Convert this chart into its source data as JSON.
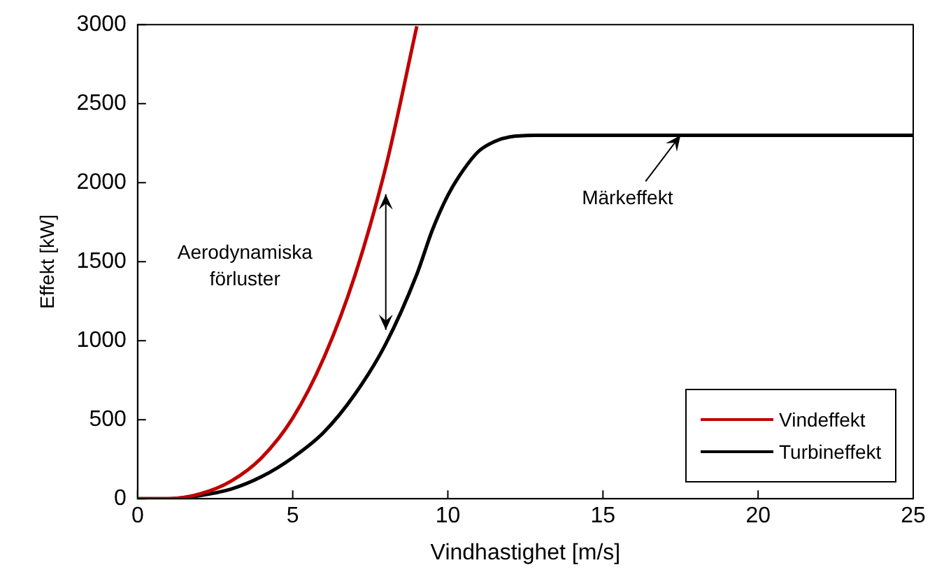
{
  "chart_data": {
    "type": "line",
    "xlabel": "Vindhastighet [m/s]",
    "ylabel": "Effekt [kW]",
    "xlim": [
      0,
      25
    ],
    "ylim": [
      0,
      3000
    ],
    "xticks": [
      0,
      5,
      10,
      15,
      20,
      25
    ],
    "yticks": [
      0,
      500,
      1000,
      1500,
      2000,
      2500,
      3000
    ],
    "grid": false,
    "legend": "bottom right",
    "marker": "none",
    "line_style": "solid",
    "series": [
      {
        "name": "Vindeffekt",
        "color": "#c00000",
        "x": [
          0,
          1,
          2,
          3,
          4,
          5,
          6,
          7,
          8,
          9
        ],
        "values": [
          0,
          0,
          30,
          110,
          260,
          510,
          890,
          1410,
          2100,
          2990
        ]
      },
      {
        "name": "Turbineffekt",
        "color": "#000000",
        "x": [
          0,
          1,
          2,
          3,
          4,
          5,
          6,
          7,
          8,
          9,
          9.5,
          10,
          10.5,
          11,
          11.5,
          12,
          13,
          25
        ],
        "values": [
          0,
          0,
          20,
          60,
          140,
          260,
          420,
          660,
          980,
          1420,
          1700,
          1920,
          2080,
          2200,
          2260,
          2290,
          2300,
          2300
        ]
      }
    ],
    "annotations": [
      "Aerodynamiska förluster",
      {
        "text": "Märkeffekt",
        "x": 17.5,
        "y": 2300
      }
    ]
  }
}
